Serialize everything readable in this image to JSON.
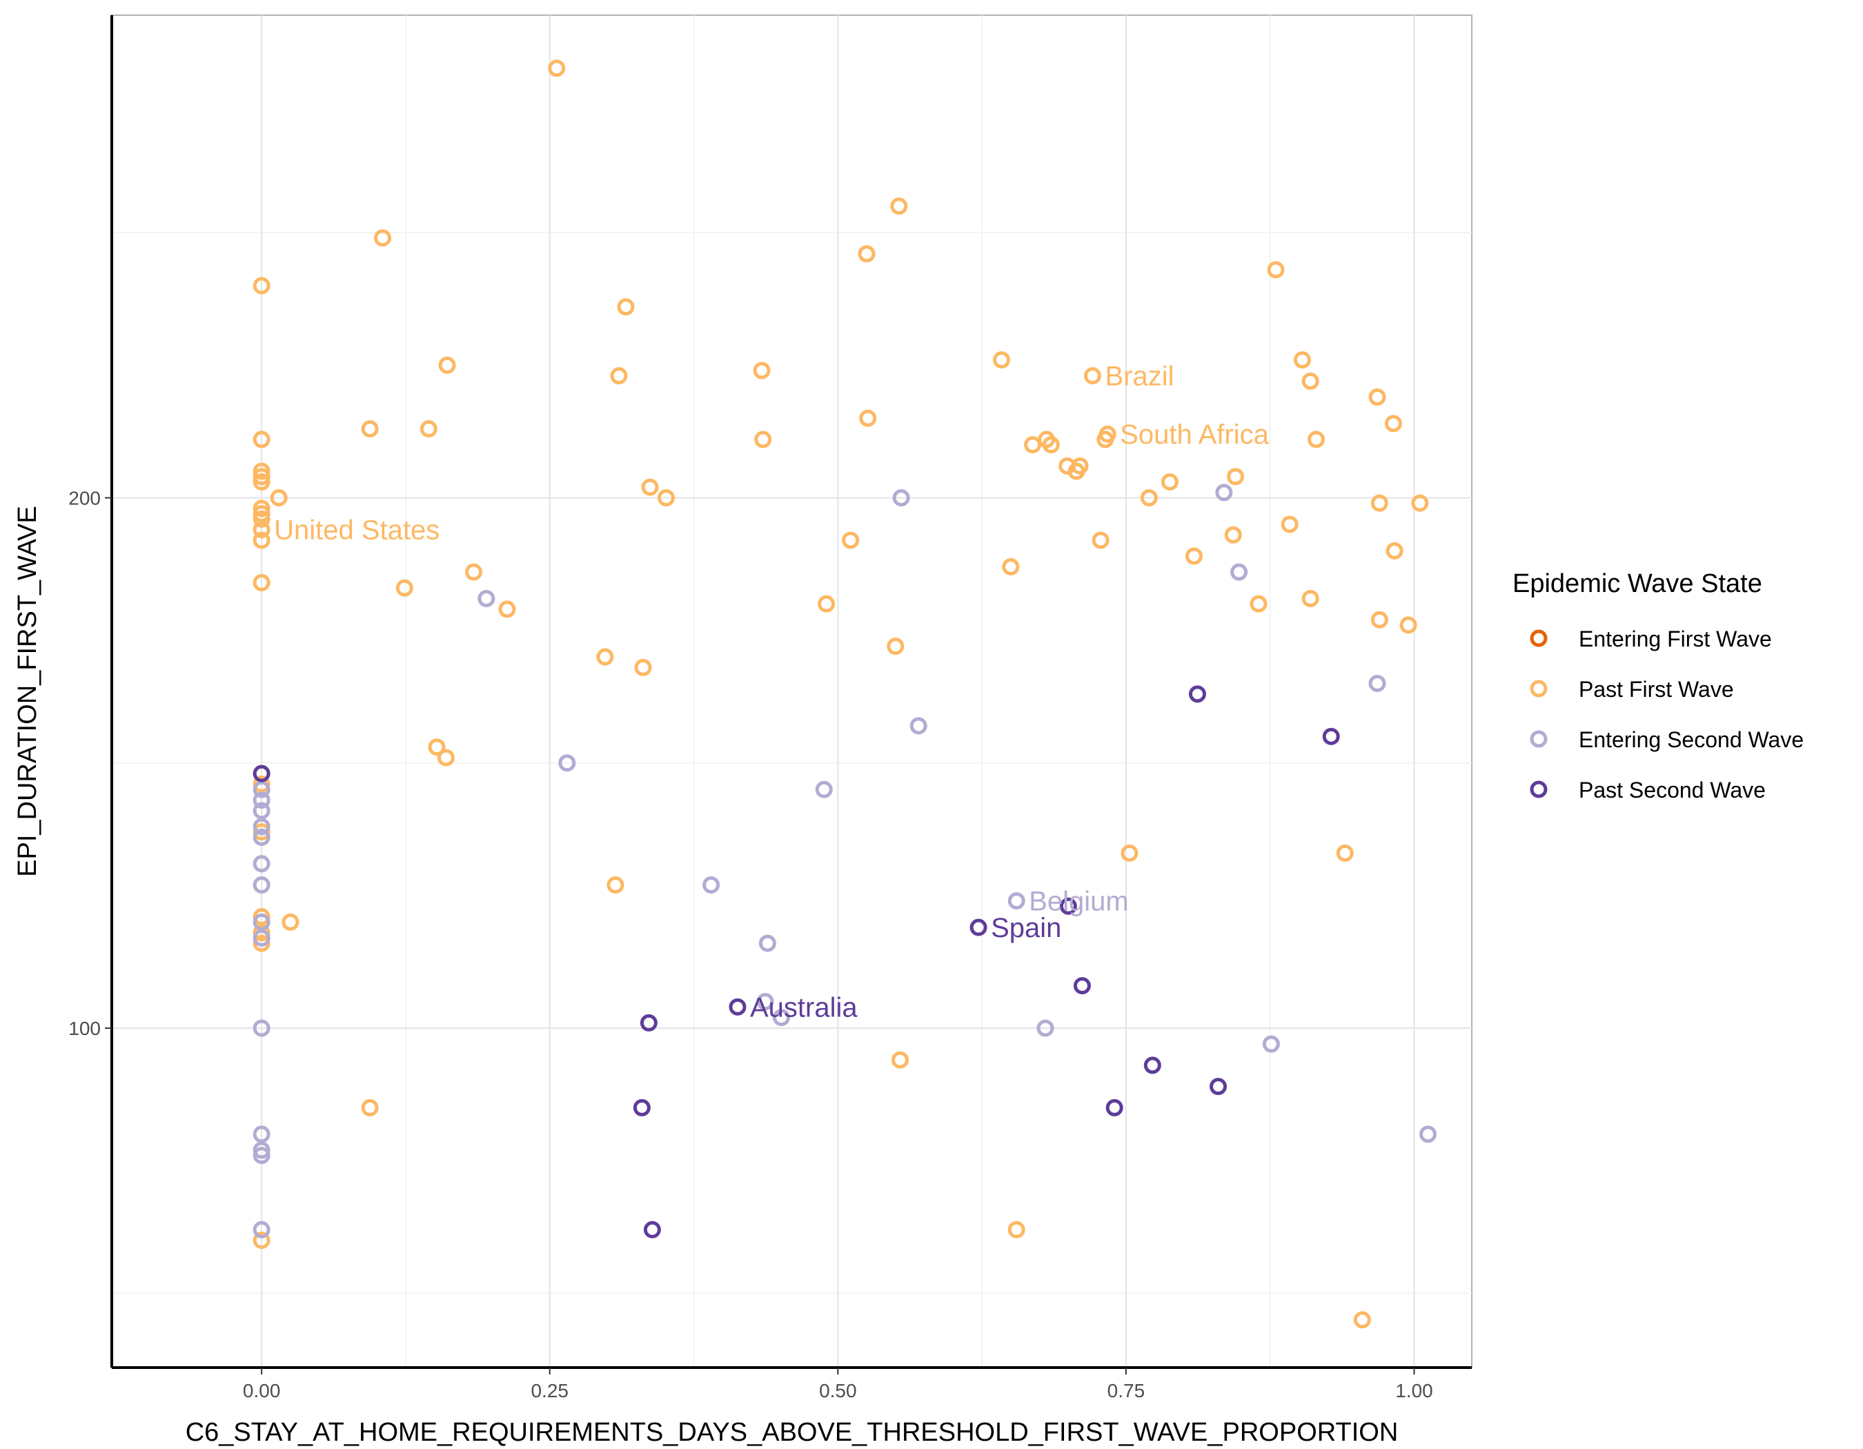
{
  "chart_data": {
    "type": "scatter",
    "xlabel": "C6_STAY_AT_HOME_REQUIREMENTS_DAYS_ABOVE_THRESHOLD_FIRST_WAVE_PROPORTION",
    "ylabel": "EPI_DURATION_FIRST_WAVE",
    "xlim": [
      -0.13,
      1.05
    ],
    "ylim": [
      36,
      291
    ],
    "x_ticks": [
      0.0,
      0.25,
      0.5,
      0.75,
      1.0
    ],
    "x_tick_labels": [
      "0.00",
      "0.25",
      "0.50",
      "0.75",
      "1.00"
    ],
    "y_ticks": [
      100,
      200
    ],
    "y_tick_labels": [
      "100",
      "200"
    ],
    "grid": true,
    "legend": {
      "title": "Epidemic Wave State",
      "position": "right",
      "entries": [
        {
          "label": "Entering First Wave",
          "color": "#e66101"
        },
        {
          "label": "Past First Wave",
          "color": "#fdb863"
        },
        {
          "label": "Entering Second Wave",
          "color": "#b2abd2"
        },
        {
          "label": "Past Second Wave",
          "color": "#5e3c99"
        }
      ]
    },
    "series": [
      {
        "name": "Entering First Wave",
        "color": "#e66101",
        "points": []
      },
      {
        "name": "Past First Wave",
        "color": "#fdb863",
        "points": [
          [
            0.256,
            281
          ],
          [
            0.105,
            249
          ],
          [
            0.0,
            240
          ],
          [
            0.553,
            255
          ],
          [
            0.525,
            246
          ],
          [
            0.316,
            236
          ],
          [
            0.0,
            211
          ],
          [
            0.0,
            205
          ],
          [
            0.0,
            204
          ],
          [
            0.0,
            203
          ],
          [
            0.0,
            198
          ],
          [
            0.0,
            197
          ],
          [
            0.0,
            196
          ],
          [
            0.0,
            194
          ],
          [
            0.0,
            192
          ],
          [
            0.015,
            200
          ],
          [
            0.0,
            184
          ],
          [
            0.094,
            213
          ],
          [
            0.145,
            213
          ],
          [
            0.161,
            225
          ],
          [
            0.31,
            223
          ],
          [
            0.434,
            224
          ],
          [
            0.435,
            211
          ],
          [
            0.526,
            215
          ],
          [
            0.337,
            202
          ],
          [
            0.351,
            200
          ],
          [
            0.511,
            192
          ],
          [
            0.184,
            186
          ],
          [
            0.124,
            183
          ],
          [
            0.213,
            179
          ],
          [
            0.49,
            180
          ],
          [
            0.298,
            170
          ],
          [
            0.331,
            168
          ],
          [
            0.55,
            172
          ],
          [
            0.152,
            153
          ],
          [
            0.16,
            151
          ],
          [
            0.307,
            127
          ],
          [
            0.0,
            148
          ],
          [
            0.0,
            146
          ],
          [
            0.0,
            137
          ],
          [
            0.0,
            121
          ],
          [
            0.0,
            118
          ],
          [
            0.0,
            116
          ],
          [
            0.025,
            120
          ],
          [
            0.094,
            85
          ],
          [
            0.0,
            60
          ],
          [
            0.554,
            94
          ],
          [
            0.655,
            62
          ],
          [
            0.642,
            226
          ],
          [
            0.721,
            223
          ],
          [
            0.732,
            211
          ],
          [
            0.734,
            212
          ],
          [
            0.669,
            210
          ],
          [
            0.681,
            211
          ],
          [
            0.685,
            210
          ],
          [
            0.699,
            206
          ],
          [
            0.71,
            206
          ],
          [
            0.707,
            205
          ],
          [
            0.65,
            187
          ],
          [
            0.77,
            200
          ],
          [
            0.788,
            203
          ],
          [
            0.845,
            204
          ],
          [
            0.728,
            192
          ],
          [
            0.809,
            189
          ],
          [
            0.843,
            193
          ],
          [
            0.753,
            133
          ],
          [
            0.88,
            243
          ],
          [
            0.903,
            226
          ],
          [
            0.91,
            222
          ],
          [
            0.915,
            211
          ],
          [
            0.892,
            195
          ],
          [
            0.968,
            219
          ],
          [
            0.982,
            214
          ],
          [
            0.97,
            199
          ],
          [
            1.005,
            199
          ],
          [
            0.983,
            190
          ],
          [
            0.91,
            181
          ],
          [
            0.865,
            180
          ],
          [
            0.97,
            177
          ],
          [
            0.995,
            176
          ],
          [
            0.94,
            133
          ],
          [
            0.955,
            45
          ]
        ]
      },
      {
        "name": "Entering Second Wave",
        "color": "#b2abd2",
        "points": [
          [
            0.555,
            200
          ],
          [
            0.195,
            181
          ],
          [
            0.265,
            150
          ],
          [
            0.0,
            145
          ],
          [
            0.0,
            143
          ],
          [
            0.0,
            141
          ],
          [
            0.0,
            138
          ],
          [
            0.0,
            136
          ],
          [
            0.0,
            131
          ],
          [
            0.0,
            127
          ],
          [
            0.0,
            120
          ],
          [
            0.0,
            117
          ],
          [
            0.0,
            100
          ],
          [
            0.0,
            80
          ],
          [
            0.0,
            77
          ],
          [
            0.0,
            76
          ],
          [
            0.0,
            62
          ],
          [
            0.39,
            127
          ],
          [
            0.57,
            157
          ],
          [
            0.488,
            145
          ],
          [
            0.439,
            116
          ],
          [
            0.437,
            105
          ],
          [
            0.451,
            102
          ],
          [
            0.655,
            124
          ],
          [
            0.68,
            100
          ],
          [
            0.835,
            201
          ],
          [
            0.848,
            186
          ],
          [
            0.968,
            165
          ],
          [
            0.876,
            97
          ],
          [
            1.012,
            80
          ]
        ]
      },
      {
        "name": "Past Second Wave",
        "color": "#5e3c99",
        "points": [
          [
            0.0,
            148
          ],
          [
            0.336,
            101
          ],
          [
            0.33,
            85
          ],
          [
            0.339,
            62
          ],
          [
            0.413,
            104
          ],
          [
            0.622,
            119
          ],
          [
            0.7,
            123
          ],
          [
            0.712,
            108
          ],
          [
            0.812,
            163
          ],
          [
            0.928,
            155
          ],
          [
            0.773,
            93
          ],
          [
            0.74,
            85
          ],
          [
            0.83,
            89
          ]
        ]
      }
    ],
    "annotations": [
      {
        "text": "United States",
        "x": 0.0,
        "y": 194,
        "color": "#fdb863"
      },
      {
        "text": "Brazil",
        "x": 0.721,
        "y": 223,
        "color": "#fdb863"
      },
      {
        "text": "South Africa",
        "x": 0.734,
        "y": 212,
        "color": "#fdb863"
      },
      {
        "text": "Belgium",
        "x": 0.655,
        "y": 124,
        "color": "#b2abd2"
      },
      {
        "text": "Spain",
        "x": 0.622,
        "y": 119,
        "color": "#5e3c99"
      },
      {
        "text": "Australia",
        "x": 0.413,
        "y": 104,
        "color": "#5e3c99"
      }
    ]
  }
}
